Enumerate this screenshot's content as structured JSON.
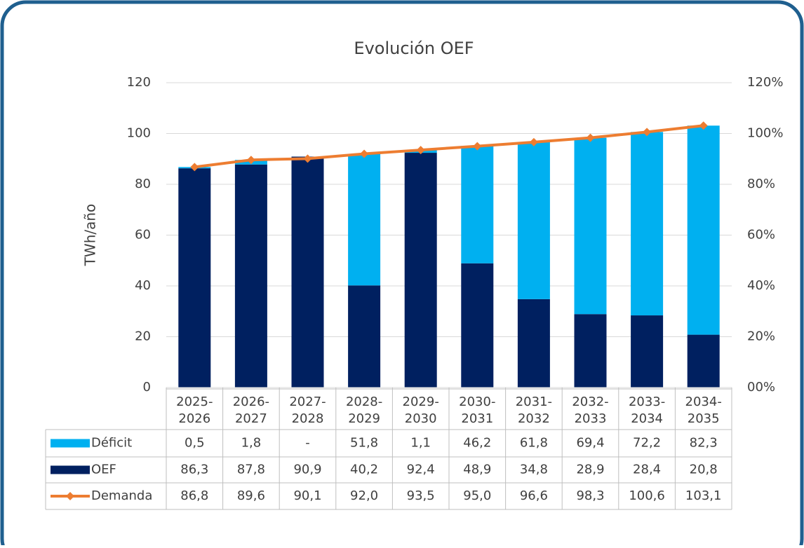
{
  "chart_data": {
    "type": "bar-line",
    "title": "Evolución OEF",
    "y_label": "TWh/año",
    "categories": [
      "2025-2026",
      "2026-2027",
      "2027-2028",
      "2028-2029",
      "2029-2030",
      "2030-2031",
      "2031-2032",
      "2032-2033",
      "2033-2034",
      "2034-2035"
    ],
    "series": [
      {
        "name": "Déficit",
        "type": "bar",
        "color": "#00b0f0",
        "stack": 1,
        "values": [
          0.5,
          1.8,
          null,
          51.8,
          1.1,
          46.2,
          61.8,
          69.4,
          72.2,
          82.3
        ],
        "value_labels": [
          "0,5",
          "1,8",
          "-",
          "51,8",
          "1,1",
          "46,2",
          "61,8",
          "69,4",
          "72,2",
          "82,3"
        ]
      },
      {
        "name": "OEF",
        "type": "bar",
        "color": "#002060",
        "stack": 0,
        "values": [
          86.3,
          87.8,
          90.9,
          40.2,
          92.4,
          48.9,
          34.8,
          28.9,
          28.4,
          20.8
        ],
        "value_labels": [
          "86,3",
          "87,8",
          "90,9",
          "40,2",
          "92,4",
          "48,9",
          "34,8",
          "28,9",
          "28,4",
          "20,8"
        ]
      },
      {
        "name": "Demanda",
        "type": "line",
        "color": "#ed7d31",
        "values": [
          86.8,
          89.6,
          90.1,
          92.0,
          93.5,
          95.0,
          96.6,
          98.3,
          100.6,
          103.1
        ],
        "value_labels": [
          "86,8",
          "89,6",
          "90,1",
          "92,0",
          "93,5",
          "95,0",
          "96,6",
          "98,3",
          "100,6",
          "103,1"
        ]
      }
    ],
    "ylim": [
      0,
      120
    ],
    "yticks": [
      0,
      20,
      40,
      60,
      80,
      100,
      120
    ],
    "y2lim": [
      0,
      120
    ],
    "y2ticks": [
      {
        "value": 0,
        "label": "00%"
      },
      {
        "value": 20,
        "label": "20%"
      },
      {
        "value": 40,
        "label": "40%"
      },
      {
        "value": 60,
        "label": "60%"
      },
      {
        "value": 80,
        "label": "80%"
      },
      {
        "value": 100,
        "label": "100%"
      },
      {
        "value": 120,
        "label": "120%"
      }
    ],
    "grid": true
  }
}
